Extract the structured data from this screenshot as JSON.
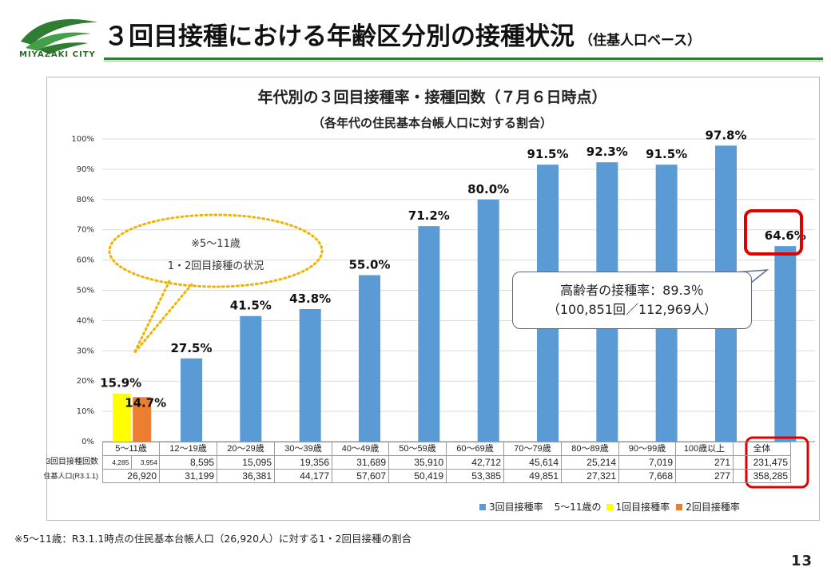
{
  "header": {
    "logo_text": "MIYAZAKI CITY",
    "title": "３回目接種における年齢区分別の接種状況",
    "title_suffix": "（住基人口ベース）"
  },
  "colors": {
    "bar_main": "#5b9bd5",
    "bar_first": "#ffff00",
    "bar_second": "#ed7d31",
    "highlight": "#e00000",
    "accent_green": "#2e7d32"
  },
  "chart_data": {
    "type": "bar",
    "title": "年代別の３回目接種率・接種回数（７月６日時点）",
    "subtitle": "（各年代の住民基本台帳人口に対する割合）",
    "categories": [
      "5～11歳",
      "12～19歳",
      "20～29歳",
      "30～39歳",
      "40～49歳",
      "50～59歳",
      "60～69歳",
      "70～79歳",
      "80～89歳",
      "90～99歳",
      "100歳以上",
      "全体"
    ],
    "series": [
      {
        "name": "3回目接種率",
        "values": [
          null,
          27.5,
          41.5,
          43.8,
          55.0,
          71.2,
          80.0,
          91.5,
          92.3,
          91.5,
          97.8,
          64.6
        ],
        "labels": [
          "",
          "27.5%",
          "41.5%",
          "43.8%",
          "55.0%",
          "71.2%",
          "80.0%",
          "91.5%",
          "92.3%",
          "91.5%",
          "97.8%",
          "64.6%"
        ]
      },
      {
        "name": "5～11歳の1回目接種率",
        "values": [
          15.9,
          null,
          null,
          null,
          null,
          null,
          null,
          null,
          null,
          null,
          null,
          null
        ],
        "labels": [
          "15.9%"
        ]
      },
      {
        "name": "5～11歳の2回目接種率",
        "values": [
          14.7,
          null,
          null,
          null,
          null,
          null,
          null,
          null,
          null,
          null,
          null,
          null
        ],
        "labels": [
          "14.7%"
        ]
      }
    ],
    "ylim": [
      0,
      100
    ],
    "yticks": [
      "0%",
      "10%",
      "20%",
      "30%",
      "40%",
      "50%",
      "60%",
      "70%",
      "80%",
      "90%",
      "100%"
    ],
    "legend": {
      "s1": "3回目接種率",
      "s2_prefix": "5～11歳の",
      "s2": "1回目接種率",
      "s3": "2回目接種率"
    },
    "table": {
      "rows": [
        {
          "label": "3回目接種回数",
          "first_split": [
            "4,285",
            "3,954"
          ],
          "values": [
            "8,595",
            "15,095",
            "19,356",
            "31,689",
            "35,910",
            "42,712",
            "45,614",
            "25,214",
            "7,019",
            "271",
            "231,475"
          ]
        },
        {
          "label": "住基人口(R3.1.1)",
          "values": [
            "26,920",
            "31,199",
            "36,381",
            "44,177",
            "57,607",
            "50,419",
            "53,385",
            "49,851",
            "27,321",
            "7,668",
            "277",
            "358,285"
          ]
        }
      ]
    }
  },
  "annotations": {
    "bubble_line1": "※5～11歳",
    "bubble_line2": "1・2回目接種の状況",
    "callout_line1": "高齢者の接種率：89.3％",
    "callout_line2": "（100,851回／112,969人）"
  },
  "footnote": "※5～11歳：R3.1.1時点の住民基本台帳人口（26,920人）に対する1・2回目接種の割合",
  "page_number": "13"
}
